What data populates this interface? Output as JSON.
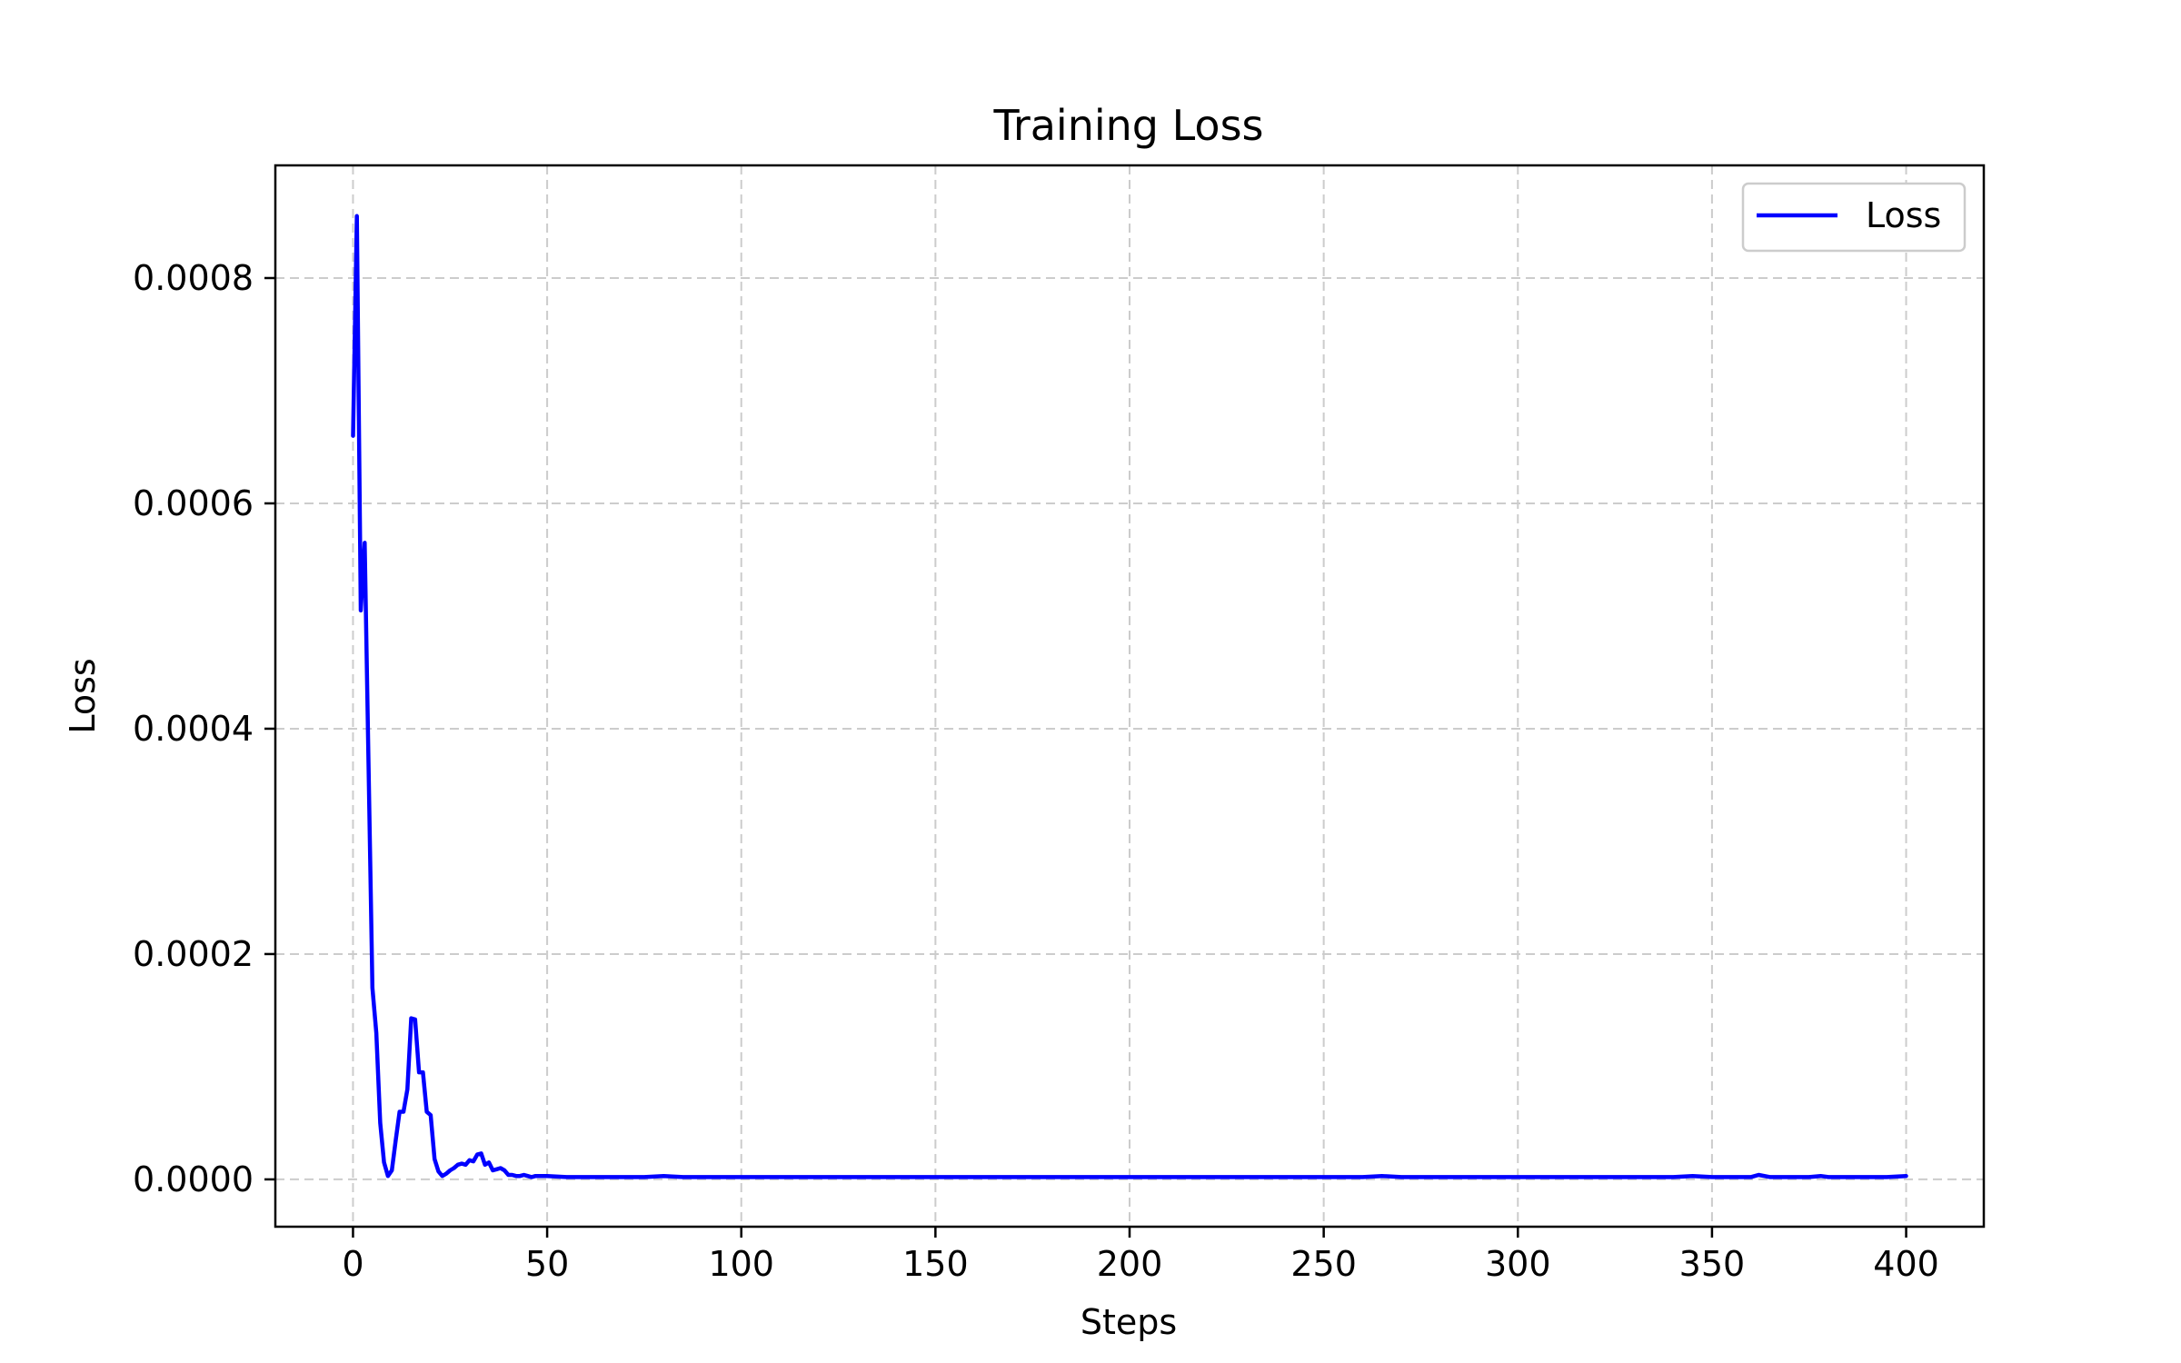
{
  "chart_data": {
    "type": "line",
    "title": "Training Loss",
    "xlabel": "Steps",
    "ylabel": "Loss",
    "xlim": [
      -20,
      420
    ],
    "ylim": [
      -4.2e-05,
      0.0009
    ],
    "xticks": [
      0,
      50,
      100,
      150,
      200,
      250,
      300,
      350,
      400
    ],
    "xtick_labels": [
      "0",
      "50",
      "100",
      "150",
      "200",
      "250",
      "300",
      "350",
      "400"
    ],
    "yticks": [
      0.0,
      0.0002,
      0.0004,
      0.0006,
      0.0008
    ],
    "ytick_labels": [
      "0.0000",
      "0.0002",
      "0.0004",
      "0.0006",
      "0.0008"
    ],
    "grid": true,
    "legend_position": "top-right",
    "colors": {
      "line": "#0000ff",
      "grid": "#cccccc",
      "axes": "#000000"
    },
    "series": [
      {
        "name": "Loss",
        "x": [
          0,
          1,
          2,
          3,
          4,
          5,
          6,
          7,
          8,
          9,
          10,
          11,
          12,
          13,
          14,
          15,
          16,
          17,
          18,
          19,
          20,
          21,
          22,
          23,
          24,
          25,
          26,
          27,
          28,
          29,
          30,
          31,
          32,
          33,
          34,
          35,
          36,
          37,
          38,
          39,
          40,
          41,
          42,
          43,
          44,
          45,
          46,
          47,
          48,
          49,
          50,
          55,
          60,
          65,
          70,
          75,
          80,
          85,
          90,
          95,
          100,
          110,
          120,
          130,
          140,
          150,
          160,
          170,
          180,
          190,
          200,
          210,
          220,
          230,
          240,
          250,
          260,
          265,
          270,
          280,
          290,
          300,
          310,
          320,
          330,
          340,
          345,
          350,
          360,
          362,
          365,
          370,
          375,
          378,
          380,
          385,
          390,
          395,
          400
        ],
        "y": [
          0.00066,
          0.000855,
          0.000505,
          0.000565,
          0.00037,
          0.00017,
          0.00013,
          5e-05,
          1.5e-05,
          3e-06,
          8e-06,
          3.5e-05,
          6e-05,
          6e-05,
          8e-05,
          0.000143,
          0.000142,
          9.5e-05,
          9.5e-05,
          6e-05,
          5.7e-05,
          1.8e-05,
          7e-06,
          3e-06,
          5e-06,
          8e-06,
          1e-05,
          1.3e-05,
          1.4e-05,
          1.3e-05,
          1.7e-05,
          1.6e-05,
          2.2e-05,
          2.3e-05,
          1.3e-05,
          1.5e-05,
          8e-06,
          9e-06,
          1e-05,
          8e-06,
          4e-06,
          4e-06,
          3e-06,
          3e-06,
          4e-06,
          3e-06,
          2e-06,
          3e-06,
          3e-06,
          3e-06,
          3e-06,
          2e-06,
          2e-06,
          2e-06,
          2e-06,
          2e-06,
          3e-06,
          2e-06,
          2e-06,
          2e-06,
          2e-06,
          2e-06,
          2e-06,
          2e-06,
          2e-06,
          2e-06,
          2e-06,
          2e-06,
          2e-06,
          2e-06,
          2e-06,
          2e-06,
          2e-06,
          2e-06,
          2e-06,
          2e-06,
          2e-06,
          3e-06,
          2e-06,
          2e-06,
          2e-06,
          2e-06,
          2e-06,
          2e-06,
          2e-06,
          2e-06,
          3e-06,
          2e-06,
          2e-06,
          4e-06,
          2e-06,
          2e-06,
          2e-06,
          3e-06,
          2e-06,
          2e-06,
          2e-06,
          2e-06,
          3e-06
        ]
      }
    ]
  }
}
